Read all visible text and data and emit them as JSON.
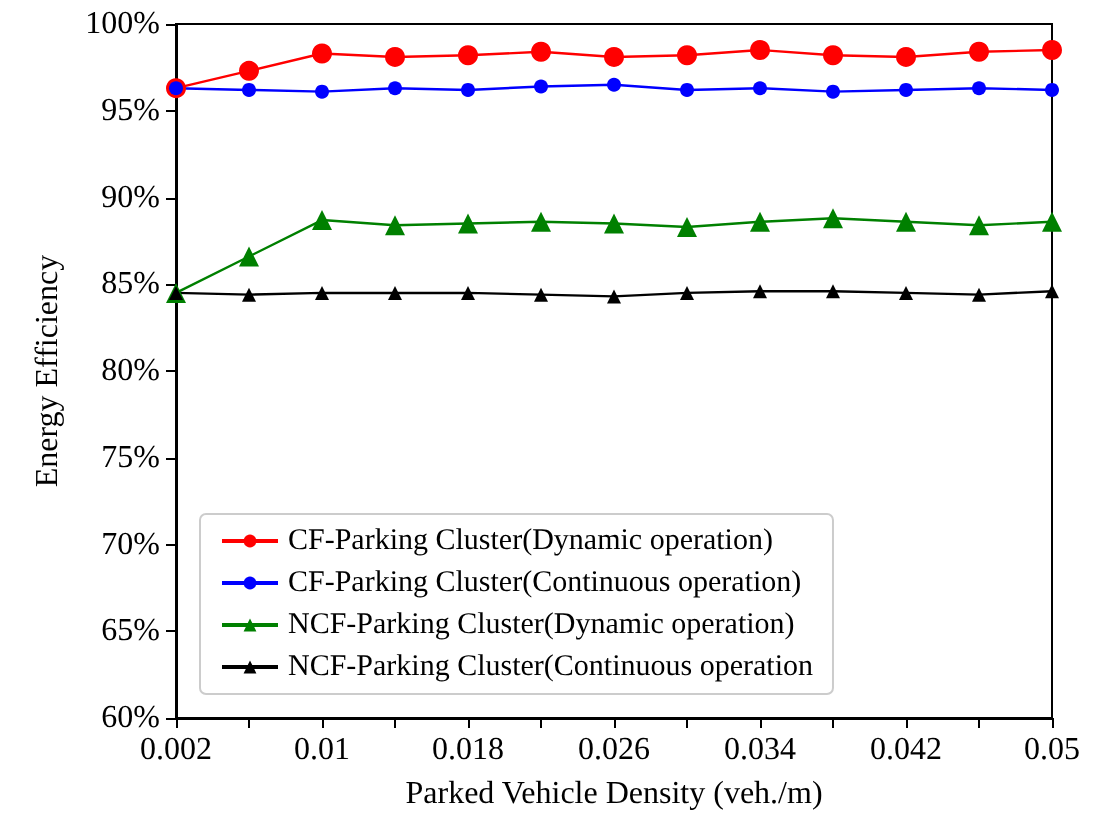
{
  "chart_data": {
    "type": "line",
    "xlabel": "Parked Vehicle Density (veh./m)",
    "ylabel": "Energy Efficiency",
    "x": [
      0.002,
      0.006,
      0.01,
      0.014,
      0.018,
      0.022,
      0.026,
      0.03,
      0.034,
      0.038,
      0.042,
      0.046,
      0.05
    ],
    "series": [
      {
        "name": "CF-Parking Cluster(Dynamic operation)",
        "color": "#ff0000",
        "marker": "circle",
        "values": [
          96.3,
          97.3,
          98.3,
          98.1,
          98.2,
          98.4,
          98.1,
          98.2,
          98.5,
          98.2,
          98.1,
          98.4,
          98.5
        ]
      },
      {
        "name": "CF-Parking Cluster(Continuous operation)",
        "color": "#0000ff",
        "marker": "circle",
        "values": [
          96.3,
          96.2,
          96.1,
          96.3,
          96.2,
          96.4,
          96.5,
          96.2,
          96.3,
          96.1,
          96.2,
          96.3,
          96.2
        ]
      },
      {
        "name": "NCF-Parking Cluster(Dynamic operation)",
        "color": "#008000",
        "marker": "triangle",
        "values": [
          84.5,
          86.6,
          88.7,
          88.4,
          88.5,
          88.6,
          88.5,
          88.3,
          88.6,
          88.8,
          88.6,
          88.4,
          88.6
        ]
      },
      {
        "name": "NCF-Parking Cluster(Continuous operation",
        "color": "#000000",
        "marker": "triangle",
        "values": [
          84.5,
          84.4,
          84.5,
          84.5,
          84.5,
          84.4,
          84.3,
          84.5,
          84.6,
          84.6,
          84.5,
          84.4,
          84.6
        ]
      }
    ],
    "xlim": [
      0.002,
      0.05
    ],
    "xticks": [
      0.002,
      {
        "value": 0.006,
        "label": null
      },
      0.01,
      {
        "value": 0.014,
        "label": null
      },
      0.018,
      {
        "value": 0.022,
        "label": null
      },
      0.026,
      {
        "value": 0.03,
        "label": null
      },
      0.034,
      {
        "value": 0.038,
        "label": null
      },
      0.042,
      {
        "value": 0.046,
        "label": null
      },
      0.05
    ],
    "ylim": [
      60,
      100
    ],
    "yticks": [
      {
        "value": 60,
        "label": "60%"
      },
      {
        "value": 65,
        "label": "65%"
      },
      {
        "value": 70,
        "label": "70%"
      },
      {
        "value": 75,
        "label": "75%"
      },
      {
        "value": 80,
        "label": "80%"
      },
      {
        "value": 85,
        "label": "85%"
      },
      {
        "value": 90,
        "label": "90%"
      },
      {
        "value": 95,
        "label": "95%"
      },
      {
        "value": 100,
        "label": "100%"
      }
    ],
    "grid": false,
    "legend": "bottom left",
    "line_style": "solid"
  }
}
